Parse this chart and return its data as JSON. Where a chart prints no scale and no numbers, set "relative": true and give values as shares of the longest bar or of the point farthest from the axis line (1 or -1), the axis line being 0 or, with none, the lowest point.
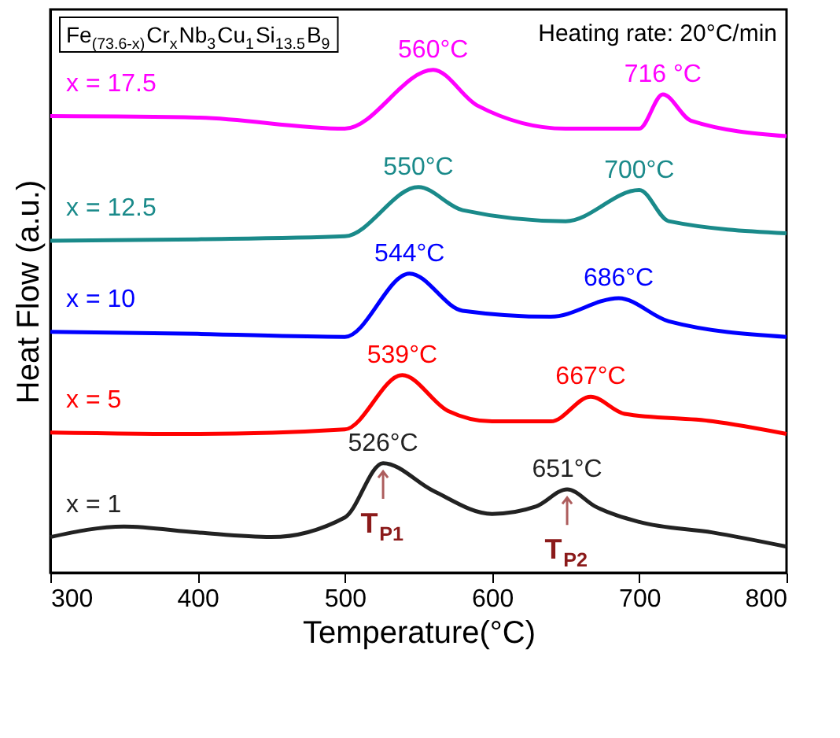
{
  "chart_data": {
    "type": "line",
    "title": "Fe$_{(73.6-x)}$Cr$_{x}$Nb$_{3}$Cu$_{1}$Si$_{13.5}$B$_{9}$",
    "xlabel": "Temperature(°C)",
    "ylabel": "Heat Flow (a.u.)",
    "relative": true,
    "xlim": [
      300,
      800
    ],
    "xticks": [
      300,
      400,
      500,
      600,
      700,
      800
    ],
    "grid": false,
    "legend": false,
    "marker": "none",
    "line_style": "solid",
    "tick_labels": "x",
    "series": [
      {
        "name": "x = 1",
        "color": "#222222",
        "x": [
          300,
          350,
          400,
          450,
          500,
          526,
          560,
          600,
          630,
          651,
          670,
          700,
          750,
          800
        ],
        "values": [
          0.071,
          0.092,
          0.08,
          0.071,
          0.11,
          0.218,
          0.163,
          0.117,
          0.132,
          0.166,
          0.132,
          0.101,
          0.08,
          0.052
        ]
      },
      {
        "name": "x = 5",
        "color": "#ff0000",
        "x": [
          300,
          400,
          500,
          539,
          570,
          600,
          640,
          667,
          690,
          750,
          800
        ],
        "values": [
          0.279,
          0.276,
          0.285,
          0.393,
          0.322,
          0.301,
          0.301,
          0.35,
          0.316,
          0.301,
          0.276
        ]
      },
      {
        "name": "x = 10",
        "color": "#0000ff",
        "x": [
          300,
          400,
          500,
          544,
          580,
          640,
          686,
          720,
          800
        ],
        "values": [
          0.479,
          0.475,
          0.469,
          0.595,
          0.521,
          0.509,
          0.546,
          0.5,
          0.469
        ]
      },
      {
        "name": "x = 12.5",
        "color": "#1a8a8a",
        "x": [
          300,
          400,
          500,
          550,
          580,
          650,
          700,
          720,
          800
        ],
        "values": [
          0.66,
          0.663,
          0.669,
          0.767,
          0.721,
          0.699,
          0.761,
          0.699,
          0.675
        ]
      },
      {
        "name": "x = 17.5",
        "color": "#ff00ff",
        "x": [
          300,
          400,
          500,
          560,
          590,
          650,
          700,
          716,
          735,
          800
        ],
        "values": [
          0.908,
          0.905,
          0.883,
          1.0,
          0.929,
          0.883,
          0.883,
          0.951,
          0.899,
          0.868
        ]
      }
    ],
    "annotations": [
      "Heating rate: 20°C/min",
      {
        "text": "526°C",
        "x": 526,
        "y": 0.218
      },
      {
        "text": "651°C",
        "x": 651,
        "y": 0.166
      },
      {
        "text": "539°C",
        "x": 539,
        "y": 0.393
      },
      {
        "text": "667°C",
        "x": 667,
        "y": 0.35
      },
      {
        "text": "544°C",
        "x": 544,
        "y": 0.595
      },
      {
        "text": "686°C",
        "x": 686,
        "y": 0.546
      },
      {
        "text": "550°C",
        "x": 550,
        "y": 0.767
      },
      {
        "text": "700°C",
        "x": 700,
        "y": 0.761
      },
      {
        "text": "560°C",
        "x": 560,
        "y": 1.0
      },
      {
        "text": "716 °C",
        "x": 716,
        "y": 0.951
      },
      {
        "text": "T$_{P1}$",
        "x": 526,
        "y": 0.218
      },
      {
        "text": "T$_{P2}$",
        "x": 651,
        "y": 0.166
      }
    ]
  }
}
